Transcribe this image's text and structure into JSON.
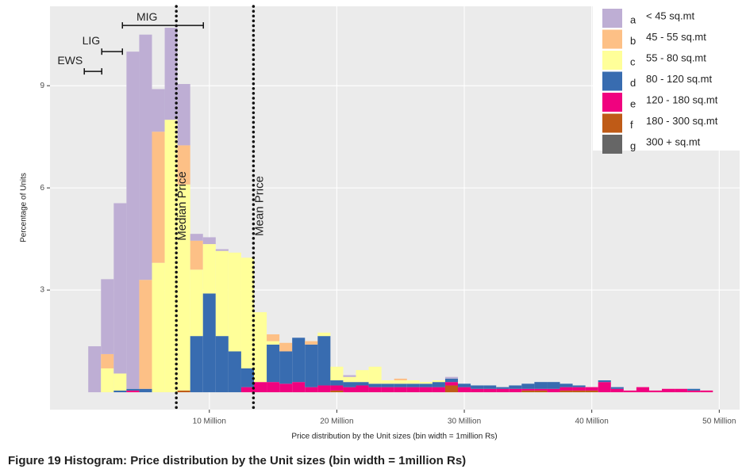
{
  "chart_data": {
    "type": "histogram",
    "caption": "Figure 19 Histogram: Price distribution by the Unit sizes (bin width = 1million Rs)",
    "x_label": "Price distribution by the Unit sizes (bin width = 1million Rs)",
    "y_label": "Percentage of Units",
    "xlim": [
      -2.5,
      51.6
    ],
    "ylim": [
      -0.51,
      11.33
    ],
    "xticks": [
      {
        "value": 10,
        "label": "10 Million"
      },
      {
        "value": 20,
        "label": "20 Million"
      },
      {
        "value": 30,
        "label": "30 Million"
      },
      {
        "value": 40,
        "label": "40 Million"
      },
      {
        "value": 50,
        "label": "50 Million"
      }
    ],
    "yticks": [
      3,
      6,
      9
    ],
    "grid": true,
    "legend": "top-right",
    "bins": [
      0.5,
      1.5,
      2.5,
      3.5,
      4.5,
      5.5,
      6.5,
      7.5,
      8.5,
      9.5,
      10.5,
      11.5,
      12.5,
      13.5,
      14.5,
      15.5,
      16.5,
      17.5,
      18.5,
      19.5,
      20.5,
      21.5,
      22.5,
      23.5,
      24.5,
      25.5,
      26.5,
      27.5,
      28.5,
      29.5,
      30.5,
      31.5,
      32.5,
      33.5,
      34.5,
      35.5,
      36.5,
      37.5,
      38.5,
      39.5,
      40.5,
      41.5,
      42.5,
      43.5,
      44.5,
      45.5,
      46.5,
      47.5,
      48.5,
      49.5
    ],
    "series": [
      {
        "key": "a",
        "name": "< 45 sq.mt",
        "color": "#beaed4",
        "values": [
          1.35,
          2.2,
          5.0,
          9.9,
          7.2,
          1.25,
          2.7,
          1.8,
          0.2,
          0.2,
          0.05,
          0,
          0,
          0,
          0,
          0,
          0,
          0,
          0,
          0,
          0.05,
          0,
          0,
          0,
          0,
          0,
          0,
          0,
          0.05,
          0,
          0,
          0,
          0,
          0,
          0,
          0,
          0,
          0,
          0,
          0,
          0,
          0,
          0,
          0,
          0,
          0,
          0,
          0,
          0
        ]
      },
      {
        "key": "b",
        "name": "45 - 55 sq.mt",
        "color": "#fdc086",
        "values": [
          0,
          0.42,
          0,
          0,
          3.2,
          3.85,
          0,
          1.15,
          0.85,
          0,
          0,
          0,
          0,
          0,
          0.2,
          0.25,
          0,
          0.1,
          0,
          0,
          0,
          0,
          0,
          0,
          0.05,
          0,
          0,
          0,
          0,
          0,
          0,
          0,
          0,
          0,
          0,
          0,
          0,
          0,
          0,
          0,
          0,
          0,
          0,
          0,
          0,
          0,
          0,
          0,
          0
        ]
      },
      {
        "key": "c",
        "name": "55 - 80 sq.mt",
        "color": "#ffff99",
        "values": [
          0,
          0.7,
          0.5,
          0,
          0,
          3.8,
          8.0,
          6.05,
          1.95,
          1.45,
          2.5,
          2.9,
          3.25,
          2.05,
          0.1,
          0,
          0,
          0,
          0.1,
          0.4,
          0.15,
          0.35,
          0.5,
          0.1,
          0.1,
          0.1,
          0.05,
          0.05,
          0,
          0,
          0,
          0,
          0,
          0,
          0,
          0,
          0,
          0,
          0,
          0,
          0,
          0,
          0,
          0,
          0,
          0,
          0,
          0,
          0
        ]
      },
      {
        "key": "d",
        "name": "80 - 120 sq.mt",
        "color": "#386cb0",
        "values": [
          0,
          0,
          0.05,
          0.05,
          0.1,
          0,
          0,
          0,
          1.65,
          2.9,
          1.65,
          1.2,
          0.55,
          0,
          1.1,
          0.95,
          1.3,
          1.25,
          1.45,
          0.15,
          0.15,
          0.1,
          0.1,
          0.1,
          0.1,
          0.1,
          0.1,
          0.15,
          0.1,
          0.1,
          0.1,
          0.1,
          0.05,
          0.1,
          0.15,
          0.2,
          0.2,
          0.1,
          0.05,
          0,
          0.05,
          0.05,
          0,
          0,
          0,
          0,
          0,
          0.05,
          0
        ]
      },
      {
        "key": "e",
        "name": "120 - 180 sq.mt",
        "color": "#f0027f",
        "values": [
          0,
          0,
          0,
          0.05,
          0,
          0,
          0,
          0,
          0,
          0,
          0,
          0,
          0.15,
          0.3,
          0.3,
          0.25,
          0.3,
          0.15,
          0.2,
          0.15,
          0.15,
          0.2,
          0.15,
          0.15,
          0.15,
          0.15,
          0.15,
          0.15,
          0.1,
          0.15,
          0.1,
          0.1,
          0.1,
          0.1,
          0.05,
          0.05,
          0.1,
          0.1,
          0.1,
          0.1,
          0.3,
          0.1,
          0.05,
          0.15,
          0.05,
          0.1,
          0.1,
          0.05,
          0.05
        ]
      },
      {
        "key": "f",
        "name": "180 - 300 sq.mt",
        "color": "#bf5b17",
        "values": [
          0,
          0,
          0,
          0,
          0,
          0,
          0,
          0.05,
          0,
          0,
          0,
          0,
          0,
          0,
          0,
          0,
          0,
          0,
          0,
          0.05,
          0,
          0,
          0,
          0,
          0,
          0,
          0,
          0,
          0.2,
          0,
          0,
          0,
          0,
          0,
          0.05,
          0.05,
          0,
          0.05,
          0.05,
          0.05,
          0,
          0,
          0,
          0,
          0,
          0,
          0,
          0,
          0
        ]
      },
      {
        "key": "g",
        "name": "300 + sq.mt",
        "color": "#666666",
        "values": [
          0,
          0,
          0,
          0,
          0,
          0,
          0,
          0,
          0,
          0,
          0,
          0,
          0,
          0,
          0,
          0,
          0,
          0,
          0,
          0,
          0,
          0,
          0,
          0,
          0,
          0,
          0,
          0,
          0,
          0,
          0,
          0,
          0,
          0,
          0,
          0,
          0,
          0,
          0,
          0,
          0,
          0,
          0,
          0,
          0,
          0,
          0,
          0,
          0
        ]
      }
    ],
    "vlines": [
      {
        "label": "Median Price",
        "x": 7.41
      },
      {
        "label": "Mean Price",
        "x": 13.46
      }
    ],
    "brackets": [
      {
        "label": "EWS",
        "x0": 0.19,
        "x1": 1.56,
        "y": 9.42
      },
      {
        "label": "LIG",
        "x0": 1.56,
        "x1": 3.18,
        "y": 10.0
      },
      {
        "label": "MIG",
        "x0": 3.18,
        "x1": 9.53,
        "y": 10.77
      }
    ]
  }
}
